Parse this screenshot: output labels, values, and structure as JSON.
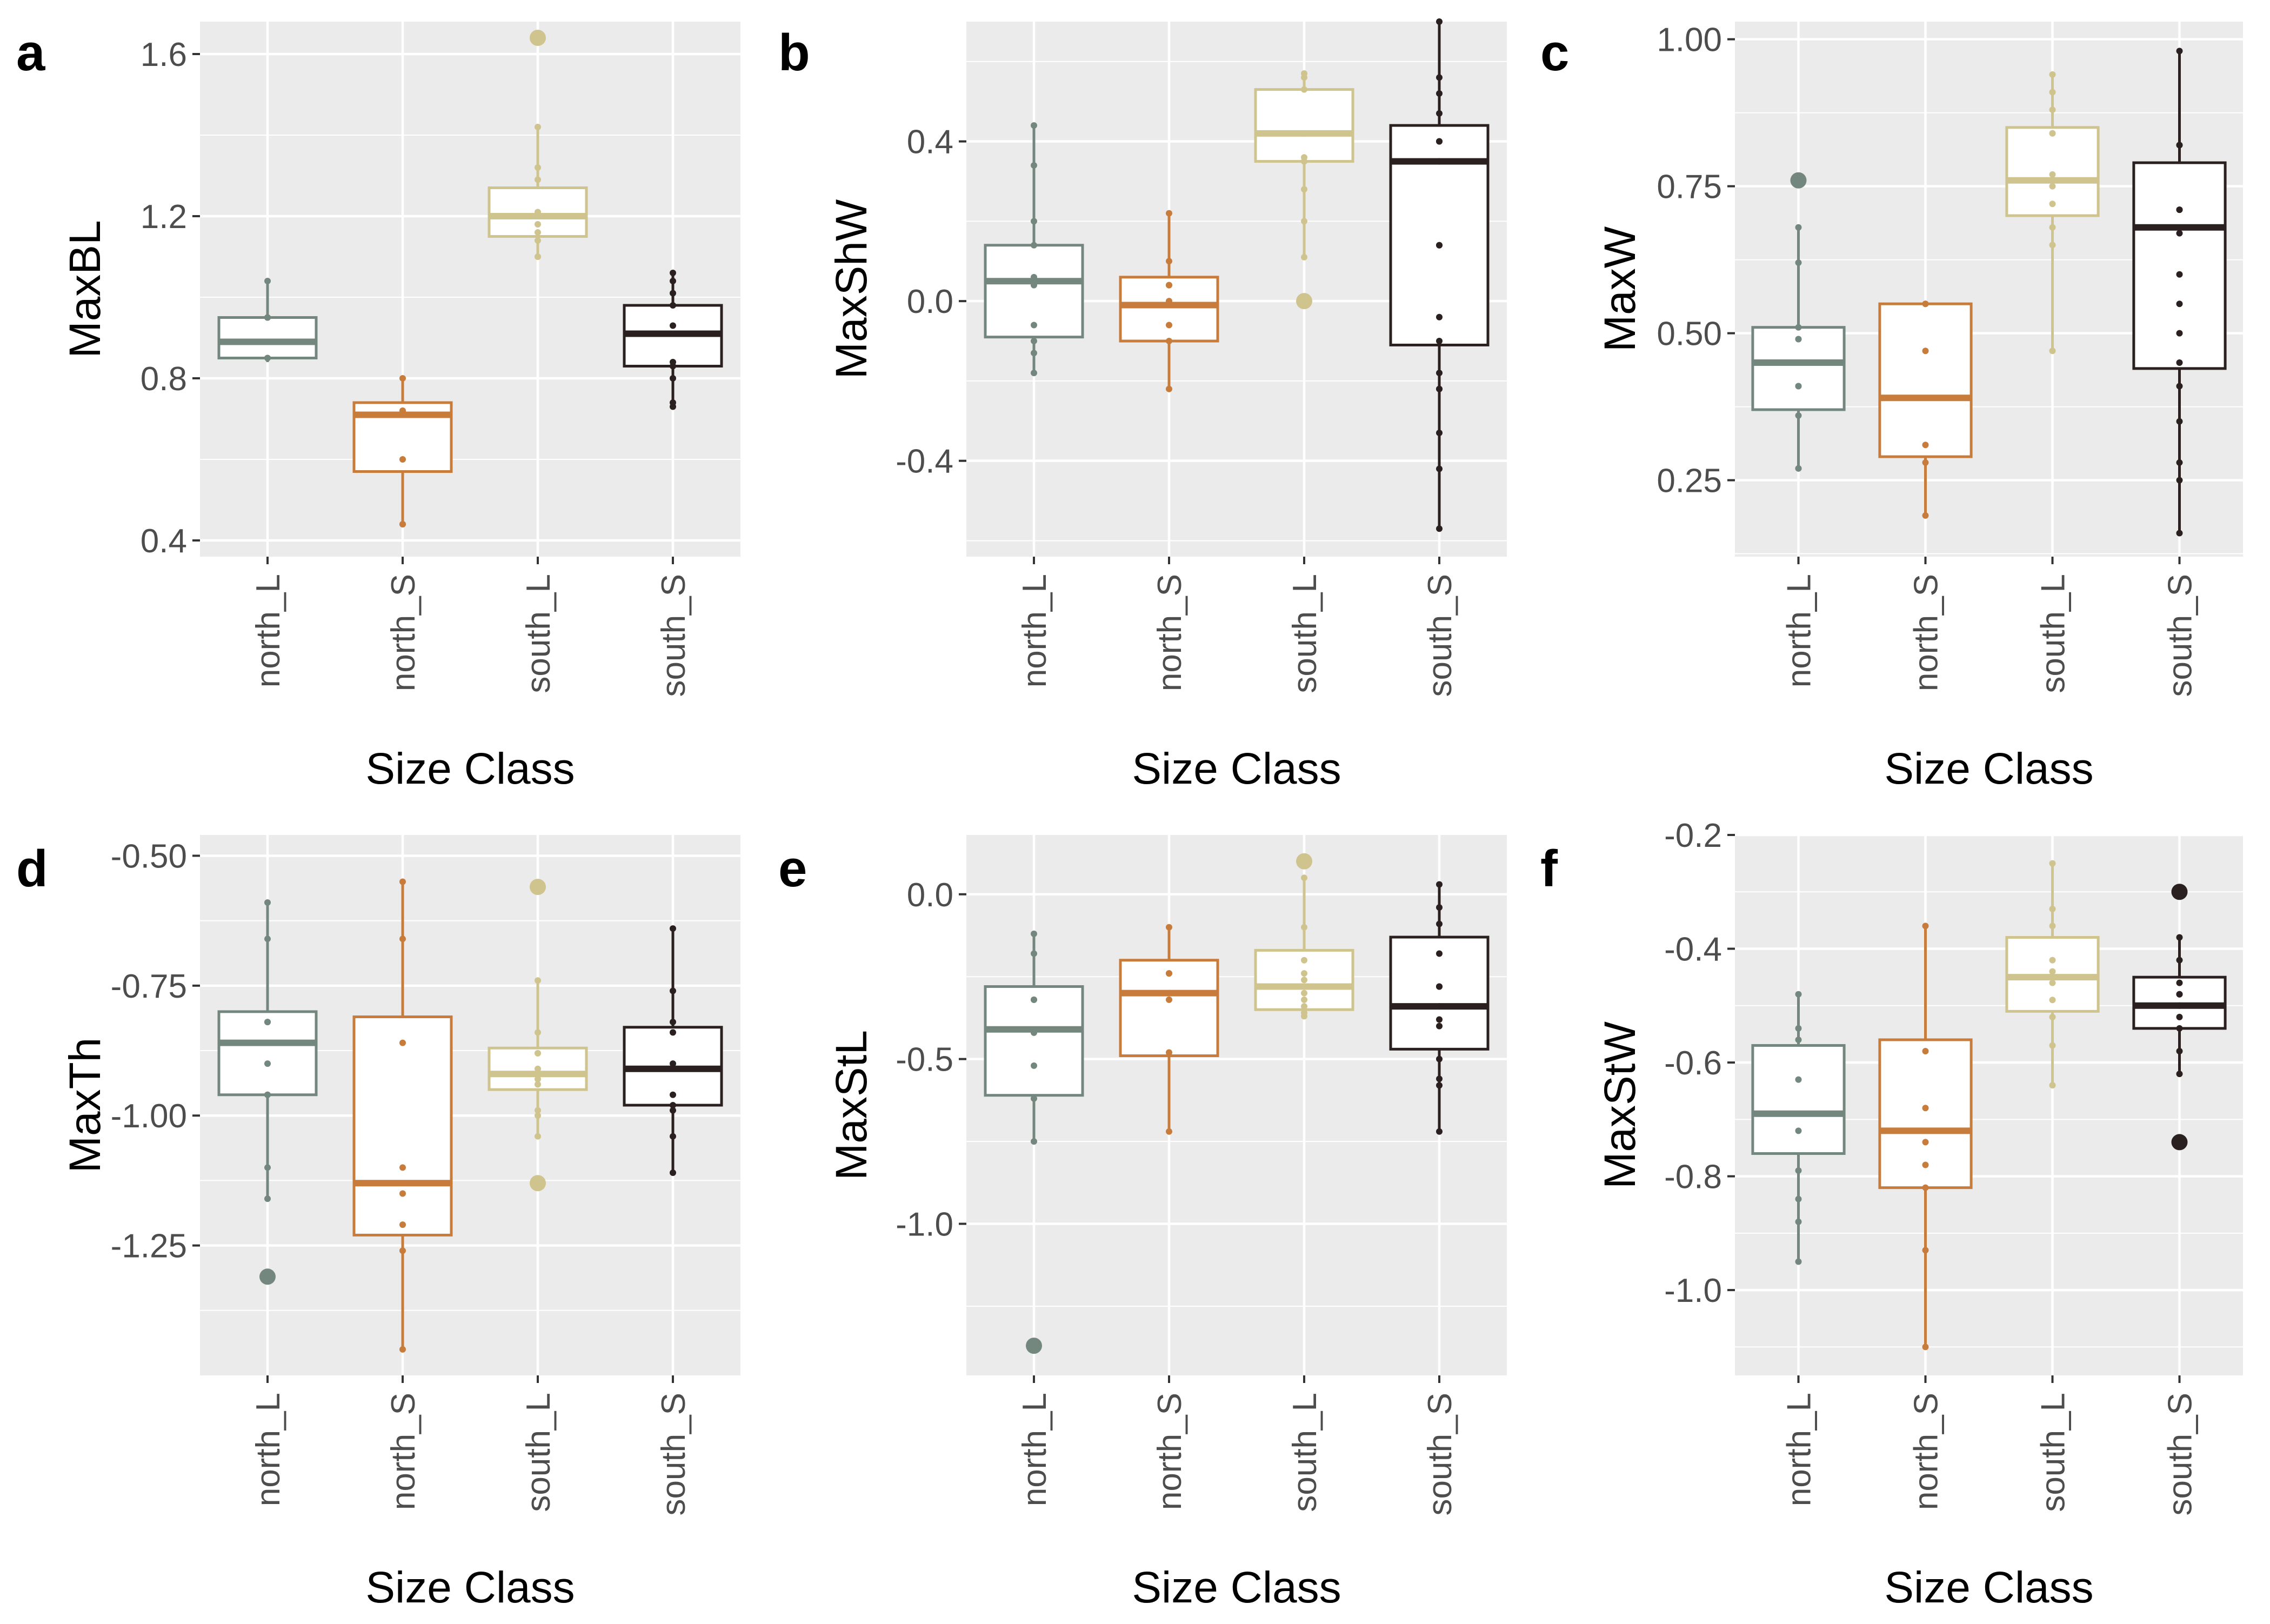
{
  "colors": {
    "panel_bg": "#EBEBEB",
    "grid": "#FFFFFF",
    "north_L": "#74877F",
    "north_S": "#C87C3B",
    "south_L": "#CFC38E",
    "south_S": "#2B2020",
    "axis_text": "#4D4D4D",
    "label_text": "#000000"
  },
  "chart_data": [
    {
      "type": "boxplot",
      "panel_label": "a",
      "xlabel": "Size Class",
      "ylabel": "MaxBL",
      "categories": [
        "north_L",
        "north_S",
        "south_L",
        "south_S"
      ],
      "yticks": [
        0.4,
        0.8,
        1.2,
        1.6
      ],
      "ytick_labels": [
        "0.4",
        "0.8",
        "1.2",
        "1.6"
      ],
      "ylim": [
        0.36,
        1.68
      ],
      "boxes": [
        {
          "q1": 0.85,
          "median": 0.89,
          "q3": 0.95,
          "whisker_low": 0.84,
          "whisker_high": 1.04,
          "outliers": [],
          "points": [
            1.04,
            0.95,
            0.95,
            0.95,
            0.85,
            0.85
          ]
        },
        {
          "q1": 0.57,
          "median": 0.71,
          "q3": 0.74,
          "whisker_low": 0.44,
          "whisker_high": 0.8,
          "outliers": [],
          "points": [
            0.8,
            0.72,
            0.72,
            0.6,
            0.44,
            0.44
          ]
        },
        {
          "q1": 1.15,
          "median": 1.2,
          "q3": 1.27,
          "whisker_low": 1.1,
          "whisker_high": 1.42,
          "outliers": [
            1.64
          ],
          "points": [
            1.42,
            1.32,
            1.29,
            1.21,
            1.21,
            1.2,
            1.18,
            1.16,
            1.14,
            1.1,
            1.1
          ]
        },
        {
          "q1": 0.83,
          "median": 0.91,
          "q3": 0.98,
          "whisker_low": 0.73,
          "whisker_high": 1.06,
          "outliers": [],
          "points": [
            1.06,
            1.04,
            1.01,
            0.98,
            0.93,
            0.91,
            0.91,
            0.84,
            0.83,
            0.8,
            0.74,
            0.73
          ]
        }
      ]
    },
    {
      "type": "boxplot",
      "panel_label": "b",
      "xlabel": "Size Class",
      "ylabel": "MaxShW",
      "categories": [
        "north_L",
        "north_S",
        "south_L",
        "south_S"
      ],
      "yticks": [
        -0.4,
        0.0,
        0.4
      ],
      "ytick_labels": [
        "-0.4",
        "0.0",
        "0.4"
      ],
      "ylim": [
        -0.64,
        0.7
      ],
      "boxes": [
        {
          "q1": -0.09,
          "median": 0.05,
          "q3": 0.14,
          "whisker_low": -0.18,
          "whisker_high": 0.44,
          "outliers": [],
          "points": [
            0.44,
            0.34,
            0.2,
            0.14,
            0.06,
            0.04,
            -0.06,
            -0.1,
            -0.13,
            -0.18
          ]
        },
        {
          "q1": -0.1,
          "median": -0.01,
          "q3": 0.06,
          "whisker_low": -0.22,
          "whisker_high": 0.22,
          "outliers": [],
          "points": [
            0.22,
            0.1,
            0.04,
            0.04,
            0.0,
            -0.06,
            -0.1,
            -0.22
          ]
        },
        {
          "q1": 0.35,
          "median": 0.42,
          "q3": 0.53,
          "whisker_low": 0.11,
          "whisker_high": 0.57,
          "outliers": [
            0.0
          ],
          "points": [
            0.57,
            0.56,
            0.53,
            0.42,
            0.42,
            0.36,
            0.35,
            0.35,
            0.28,
            0.2,
            0.11
          ]
        },
        {
          "q1": -0.11,
          "median": 0.35,
          "q3": 0.44,
          "whisker_low": -0.57,
          "whisker_high": 0.7,
          "outliers": [],
          "points": [
            0.7,
            0.56,
            0.52,
            0.47,
            0.4,
            0.4,
            0.35,
            0.14,
            0.14,
            -0.04,
            -0.1,
            -0.18,
            -0.22,
            -0.22,
            -0.33,
            -0.42,
            -0.57
          ]
        }
      ]
    },
    {
      "type": "boxplot",
      "panel_label": "c",
      "xlabel": "Size Class",
      "ylabel": "MaxW",
      "categories": [
        "north_L",
        "north_S",
        "south_L",
        "south_S"
      ],
      "yticks": [
        0.25,
        0.5,
        0.75,
        1.0
      ],
      "ytick_labels": [
        "0.25",
        "0.50",
        "0.75",
        "1.00"
      ],
      "ylim": [
        0.12,
        1.03
      ],
      "boxes": [
        {
          "q1": 0.37,
          "median": 0.45,
          "q3": 0.51,
          "whisker_low": 0.27,
          "whisker_high": 0.68,
          "outliers": [
            0.76
          ],
          "points": [
            0.68,
            0.62,
            0.51,
            0.49,
            0.49,
            0.41,
            0.41,
            0.36,
            0.27,
            0.27
          ]
        },
        {
          "q1": 0.29,
          "median": 0.39,
          "q3": 0.55,
          "whisker_low": 0.19,
          "whisker_high": 0.55,
          "outliers": [],
          "points": [
            0.55,
            0.55,
            0.47,
            0.31,
            0.28,
            0.19
          ]
        },
        {
          "q1": 0.7,
          "median": 0.76,
          "q3": 0.85,
          "whisker_low": 0.47,
          "whisker_high": 0.94,
          "outliers": [],
          "points": [
            0.94,
            0.91,
            0.88,
            0.84,
            0.84,
            0.77,
            0.75,
            0.72,
            0.68,
            0.65,
            0.47
          ]
        },
        {
          "q1": 0.44,
          "median": 0.68,
          "q3": 0.79,
          "whisker_low": 0.16,
          "whisker_high": 0.98,
          "outliers": [],
          "points": [
            0.98,
            0.82,
            0.82,
            0.71,
            0.71,
            0.67,
            0.6,
            0.55,
            0.5,
            0.45,
            0.41,
            0.35,
            0.28,
            0.25,
            0.16
          ]
        }
      ]
    },
    {
      "type": "boxplot",
      "panel_label": "d",
      "xlabel": "Size Class",
      "ylabel": "MaxTh",
      "categories": [
        "north_L",
        "north_S",
        "south_L",
        "south_S"
      ],
      "yticks": [
        -1.25,
        -1.0,
        -0.75,
        -0.5
      ],
      "ytick_labels": [
        "-1.25",
        "-1.00",
        "-0.75",
        "-0.50"
      ],
      "ylim": [
        -1.5,
        -0.46
      ],
      "boxes": [
        {
          "q1": -0.96,
          "median": -0.86,
          "q3": -0.8,
          "whisker_low": -1.16,
          "whisker_high": -0.59,
          "outliers": [
            -1.31
          ],
          "points": [
            -0.59,
            -0.66,
            -0.82,
            -0.82,
            -0.9,
            -0.96,
            -0.96,
            -1.1,
            -1.16
          ]
        },
        {
          "q1": -1.23,
          "median": -1.13,
          "q3": -0.81,
          "whisker_low": -1.45,
          "whisker_high": -0.55,
          "outliers": [],
          "points": [
            -0.55,
            -0.66,
            -0.86,
            -1.1,
            -1.15,
            -1.21,
            -1.26,
            -1.45
          ]
        },
        {
          "q1": -0.95,
          "median": -0.92,
          "q3": -0.87,
          "whisker_low": -1.04,
          "whisker_high": -0.74,
          "outliers": [
            -0.56,
            -1.13
          ],
          "points": [
            -0.74,
            -0.84,
            -0.88,
            -0.88,
            -0.91,
            -0.92,
            -0.93,
            -0.94,
            -0.99,
            -1.0,
            -1.04
          ]
        },
        {
          "q1": -0.98,
          "median": -0.91,
          "q3": -0.83,
          "whisker_low": -1.11,
          "whisker_high": -0.64,
          "outliers": [],
          "points": [
            -0.64,
            -0.76,
            -0.82,
            -0.84,
            -0.9,
            -0.96,
            -0.98,
            -0.99,
            -1.04,
            -1.11
          ]
        }
      ]
    },
    {
      "type": "boxplot",
      "panel_label": "e",
      "xlabel": "Size Class",
      "ylabel": "MaxStL",
      "categories": [
        "north_L",
        "north_S",
        "south_L",
        "south_S"
      ],
      "yticks": [
        -1.0,
        -0.5,
        0.0
      ],
      "ytick_labels": [
        "-1.0",
        "-0.5",
        "0.0"
      ],
      "ylim": [
        -1.46,
        0.18
      ],
      "boxes": [
        {
          "q1": -0.61,
          "median": -0.41,
          "q3": -0.28,
          "whisker_low": -0.75,
          "whisker_high": -0.12,
          "outliers": [
            -1.37
          ],
          "points": [
            -0.12,
            -0.18,
            -0.32,
            -0.32,
            -0.42,
            -0.52,
            -0.62,
            -0.75
          ]
        },
        {
          "q1": -0.49,
          "median": -0.3,
          "q3": -0.2,
          "whisker_low": -0.72,
          "whisker_high": -0.1,
          "outliers": [],
          "points": [
            -0.1,
            -0.24,
            -0.24,
            -0.3,
            -0.32,
            -0.48,
            -0.72
          ]
        },
        {
          "q1": -0.35,
          "median": -0.28,
          "q3": -0.17,
          "whisker_low": -0.37,
          "whisker_high": 0.05,
          "outliers": [
            0.1
          ],
          "points": [
            0.05,
            -0.1,
            -0.2,
            -0.24,
            -0.26,
            -0.28,
            -0.3,
            -0.32,
            -0.34,
            -0.36,
            -0.37
          ]
        },
        {
          "q1": -0.47,
          "median": -0.34,
          "q3": -0.13,
          "whisker_low": -0.72,
          "whisker_high": 0.03,
          "outliers": [],
          "points": [
            0.03,
            -0.04,
            -0.09,
            -0.18,
            -0.28,
            -0.28,
            -0.34,
            -0.38,
            -0.4,
            -0.5,
            -0.56,
            -0.58,
            -0.72
          ]
        }
      ]
    },
    {
      "type": "boxplot",
      "panel_label": "f",
      "xlabel": "Size Class",
      "ylabel": "MaxStW",
      "categories": [
        "north_L",
        "north_S",
        "south_L",
        "south_S"
      ],
      "yticks": [
        -1.0,
        -0.8,
        -0.6,
        -0.4,
        -0.2
      ],
      "ytick_labels": [
        "-1.0",
        "-0.8",
        "-0.6",
        "-0.4",
        "-0.2"
      ],
      "ylim": [
        -1.15,
        -0.2
      ],
      "boxes": [
        {
          "q1": -0.76,
          "median": -0.69,
          "q3": -0.57,
          "whisker_low": -0.95,
          "whisker_high": -0.48,
          "outliers": [],
          "points": [
            -0.48,
            -0.54,
            -0.56,
            -0.63,
            -0.72,
            -0.79,
            -0.84,
            -0.88,
            -0.95
          ]
        },
        {
          "q1": -0.82,
          "median": -0.72,
          "q3": -0.56,
          "whisker_low": -1.1,
          "whisker_high": -0.36,
          "outliers": [],
          "points": [
            -0.36,
            -0.58,
            -0.68,
            -0.74,
            -0.78,
            -0.82,
            -0.93,
            -1.1
          ]
        },
        {
          "q1": -0.51,
          "median": -0.45,
          "q3": -0.38,
          "whisker_low": -0.64,
          "whisker_high": -0.25,
          "outliers": [],
          "points": [
            -0.25,
            -0.33,
            -0.36,
            -0.42,
            -0.44,
            -0.46,
            -0.49,
            -0.52,
            -0.57,
            -0.64
          ]
        },
        {
          "q1": -0.54,
          "median": -0.5,
          "q3": -0.45,
          "whisker_low": -0.62,
          "whisker_high": -0.38,
          "outliers": [
            -0.3,
            -0.74
          ],
          "points": [
            -0.38,
            -0.42,
            -0.46,
            -0.48,
            -0.48,
            -0.5,
            -0.52,
            -0.54,
            -0.58,
            -0.62
          ]
        }
      ]
    }
  ]
}
